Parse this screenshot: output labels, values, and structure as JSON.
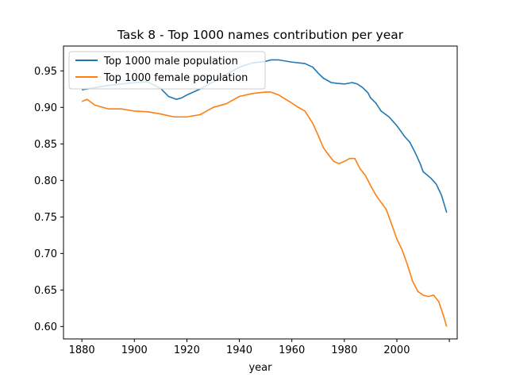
{
  "chart_data": {
    "type": "line",
    "title": "Task 8 - Top 1000 names contribution per year",
    "xlabel": "year",
    "ylabel": "",
    "xlim": [
      1873,
      2023
    ],
    "ylim": [
      0.583,
      0.984
    ],
    "xticks": [
      1880,
      1900,
      1920,
      1940,
      1960,
      1980,
      2000
    ],
    "yticks": [
      0.6,
      0.65,
      0.7,
      0.75,
      0.8,
      0.85,
      0.9,
      0.95
    ],
    "extra_x_tick_marks": [
      2020
    ],
    "grid": false,
    "legend": "upper-left",
    "series": [
      {
        "name": "Top 1000 male population",
        "color": "#1f77b4",
        "x": [
          1880,
          1890,
          1900,
          1905,
          1910,
          1913,
          1916,
          1918,
          1920,
          1925,
          1930,
          1935,
          1940,
          1945,
          1950,
          1952,
          1955,
          1960,
          1965,
          1968,
          1970,
          1972,
          1975,
          1977,
          1980,
          1983,
          1985,
          1987,
          1989,
          1990,
          1992,
          1994,
          1997,
          2000,
          2003,
          2005,
          2007,
          2009,
          2010,
          2012,
          2013,
          2015,
          2017,
          2019
        ],
        "y": [
          0.924,
          0.93,
          0.934,
          0.935,
          0.926,
          0.915,
          0.911,
          0.913,
          0.917,
          0.925,
          0.935,
          0.945,
          0.955,
          0.961,
          0.963,
          0.965,
          0.965,
          0.962,
          0.96,
          0.955,
          0.947,
          0.94,
          0.934,
          0.933,
          0.932,
          0.934,
          0.932,
          0.927,
          0.92,
          0.913,
          0.906,
          0.895,
          0.887,
          0.875,
          0.86,
          0.852,
          0.838,
          0.822,
          0.812,
          0.806,
          0.803,
          0.795,
          0.78,
          0.756
        ]
      },
      {
        "name": "Top 1000 female population",
        "color": "#ff7f0e",
        "x": [
          1880,
          1882,
          1885,
          1890,
          1895,
          1900,
          1905,
          1910,
          1915,
          1920,
          1925,
          1930,
          1935,
          1940,
          1945,
          1950,
          1952,
          1955,
          1960,
          1962,
          1965,
          1968,
          1970,
          1972,
          1974,
          1976,
          1978,
          1980,
          1982,
          1984,
          1986,
          1988,
          1990,
          1992,
          1994,
          1996,
          1998,
          2000,
          2002,
          2004,
          2006,
          2008,
          2010,
          2012,
          2014,
          2016,
          2018,
          2019
        ],
        "y": [
          0.908,
          0.911,
          0.903,
          0.898,
          0.898,
          0.895,
          0.894,
          0.891,
          0.887,
          0.887,
          0.89,
          0.9,
          0.905,
          0.915,
          0.919,
          0.921,
          0.921,
          0.917,
          0.906,
          0.901,
          0.895,
          0.878,
          0.862,
          0.845,
          0.835,
          0.826,
          0.823,
          0.826,
          0.83,
          0.83,
          0.816,
          0.807,
          0.793,
          0.78,
          0.77,
          0.76,
          0.74,
          0.72,
          0.705,
          0.685,
          0.662,
          0.648,
          0.643,
          0.641,
          0.643,
          0.634,
          0.612,
          0.6
        ]
      }
    ]
  }
}
